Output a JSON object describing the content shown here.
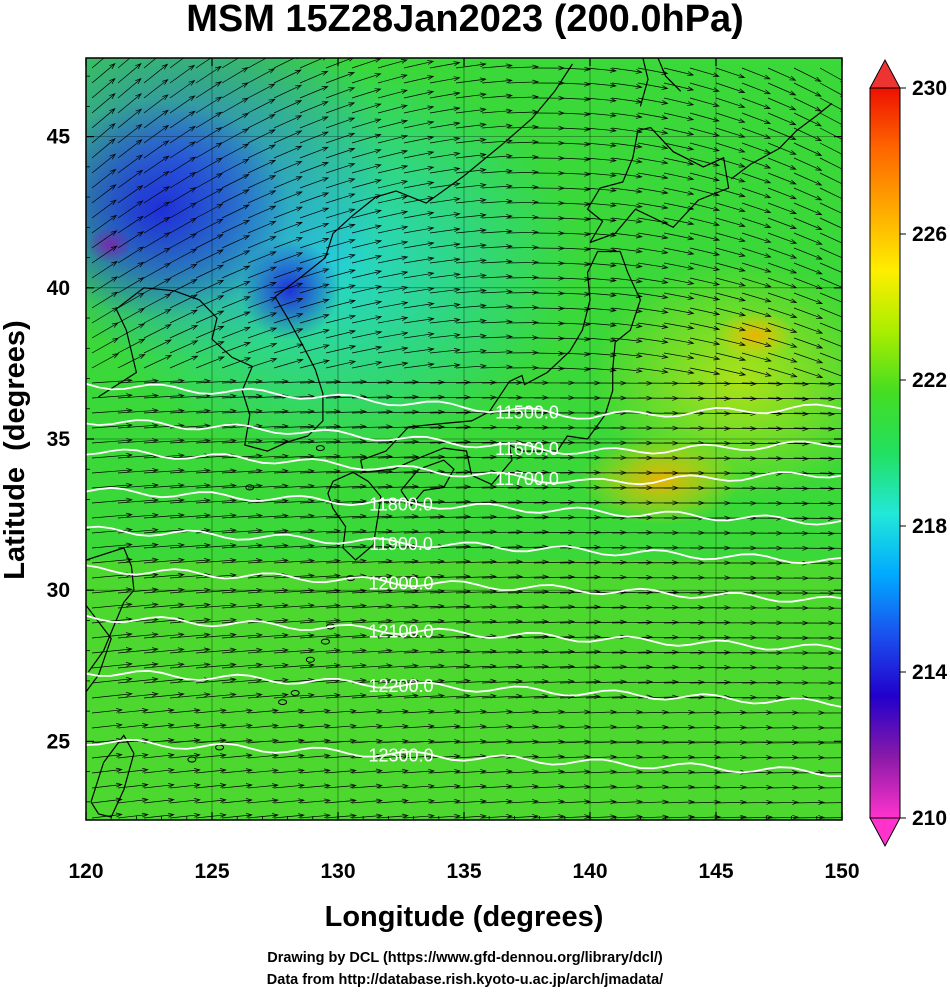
{
  "title": "MSM 15Z28Jan2023 (200.0hPa)",
  "x_axis": {
    "label": "Longitude (degrees)",
    "ticks": [
      120,
      125,
      130,
      135,
      140,
      145,
      150
    ],
    "range": [
      120,
      150
    ]
  },
  "y_axis": {
    "label": "Latitude  (degrees)",
    "ticks": [
      25,
      30,
      35,
      40,
      45
    ],
    "range": [
      22.4,
      47.6
    ]
  },
  "colorbar": {
    "ticks": [
      210,
      214,
      218,
      222,
      226,
      230
    ],
    "range": [
      210,
      230
    ],
    "colors": [
      "#ff33cc",
      "#8a1aa8",
      "#2200cc",
      "#1a50ee",
      "#00aaff",
      "#22e8d8",
      "#22e060",
      "#44dd22",
      "#aaee00",
      "#ffee00",
      "#ffaa00",
      "#ff6600",
      "#ee1100"
    ]
  },
  "contours": [
    {
      "value": "11500.0"
    },
    {
      "value": "11600.0"
    },
    {
      "value": "11700.0"
    },
    {
      "value": "11800.0"
    },
    {
      "value": "11900.0"
    },
    {
      "value": "12000.0"
    },
    {
      "value": "12100.0"
    },
    {
      "value": "12200.0"
    },
    {
      "value": "12300.0"
    }
  ],
  "credits": [
    "Drawing by DCL (https://www.gfd-dennou.org/library/dcl/)",
    "Data from http://database.rish.kyoto-u.ac.jp/arch/jmadata/"
  ],
  "colors": {
    "contour": "#ffffff",
    "coast": "#000000",
    "vector": "#000000"
  }
}
